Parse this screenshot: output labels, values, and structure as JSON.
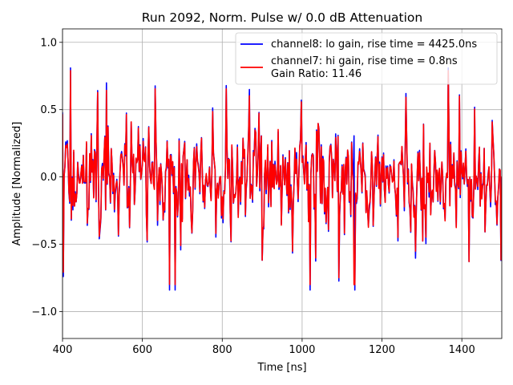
{
  "chart_data": {
    "type": "line",
    "title": "Run 2092, Norm. Pulse w/ 0.0 dB Attenuation",
    "xlabel": "Time [ns]",
    "ylabel": "Amplitude [Normalized]",
    "xlim": [
      400,
      1500
    ],
    "ylim": [
      -1.2,
      1.1
    ],
    "x_ticks": [
      400,
      600,
      800,
      1000,
      1200,
      1400
    ],
    "y_ticks": [
      -1.0,
      -0.5,
      0.0,
      0.5,
      1.0
    ],
    "x_tick_labels": [
      "400",
      "600",
      "800",
      "1000",
      "1200",
      "1400"
    ],
    "y_tick_labels": [
      "−1.0",
      "−0.5",
      "0.0",
      "0.5",
      "1.0"
    ],
    "grid": true,
    "legend_position": "top-right",
    "legend_extra_text": "Gain Ratio: 11.46",
    "series": [
      {
        "name": "channel8: lo gain, rise time = 4425.0ns",
        "color": "#0000ff",
        "x_start": 400,
        "x_end": 1500,
        "x_step": 2,
        "value_range": [
          -0.84,
          0.81
        ],
        "notable_points": [
          {
            "x": 420,
            "y": 0.81
          },
          {
            "x": 1132,
            "y": -0.84
          },
          {
            "x": 402,
            "y": -0.74
          },
          {
            "x": 1498,
            "y": -0.62
          }
        ]
      },
      {
        "name": "channel7: hi gain, rise time = 0.8ns",
        "color": "#ff0000",
        "x_start": 400,
        "x_end": 1500,
        "x_step": 2,
        "value_range": [
          -0.8,
          0.79
        ],
        "notable_points": [
          {
            "x": 420,
            "y": 0.79
          },
          {
            "x": 1130,
            "y": -0.8
          }
        ]
      }
    ]
  }
}
